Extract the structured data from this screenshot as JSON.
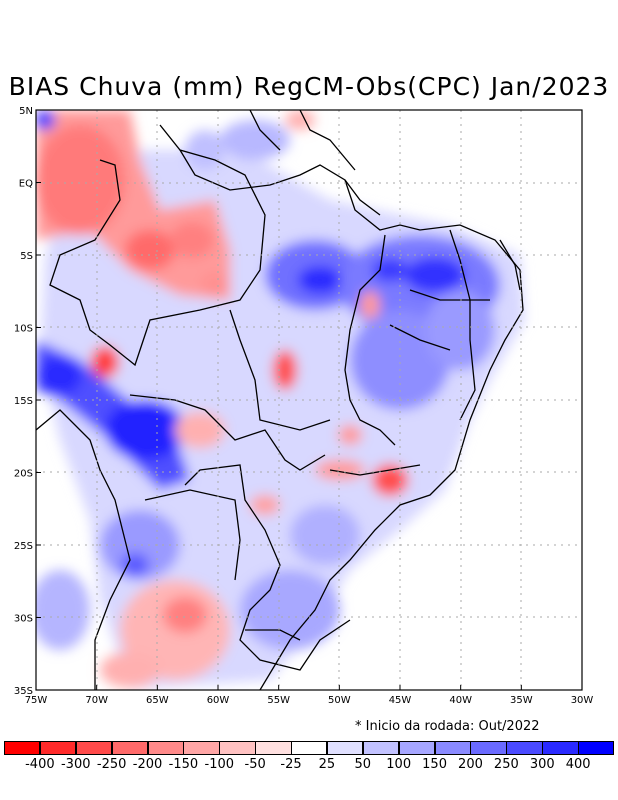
{
  "title": "BIAS Chuva (mm) RegCM-Obs(CPC) Jan/2023",
  "note": "* Inicio da rodada: Out/2022",
  "axes": {
    "lat_labels": [
      "5N",
      "EQ",
      "5S",
      "10S",
      "15S",
      "20S",
      "25S",
      "30S",
      "35S"
    ],
    "lon_labels": [
      "75W",
      "70W",
      "65W",
      "60W",
      "55W",
      "50W",
      "45W",
      "40W",
      "35W",
      "30W"
    ],
    "lon_range": [
      -75,
      -30
    ],
    "lat_range": [
      -35,
      5
    ]
  },
  "colorbar": {
    "labels": [
      "-400",
      "-300",
      "-250",
      "-200",
      "-150",
      "-100",
      "-50",
      "-25",
      "25",
      "50",
      "100",
      "150",
      "200",
      "250",
      "300",
      "400"
    ],
    "colors": [
      "#ff0000",
      "#ff2a2a",
      "#ff4a4a",
      "#ff6a6a",
      "#ff8a8a",
      "#ffa6a6",
      "#ffc2c2",
      "#ffe0e0",
      "#ffffff",
      "#e0e0ff",
      "#c2c2ff",
      "#a6a6ff",
      "#8a8aff",
      "#6a6aff",
      "#4a4aff",
      "#2a2aff",
      "#0000ff"
    ]
  },
  "anomalies": [
    {
      "lon": -68,
      "lat": 2,
      "value": -150
    },
    {
      "lon": -65,
      "lat": -4,
      "value": -200
    },
    {
      "lon": -62,
      "lat": -6,
      "value": -150
    },
    {
      "lon": -70,
      "lat": -12,
      "value": -250
    },
    {
      "lon": -55,
      "lat": -13,
      "value": -200
    },
    {
      "lon": -47,
      "lat": -18,
      "value": -100
    },
    {
      "lon": -46,
      "lat": -20.5,
      "value": -250
    },
    {
      "lon": -52,
      "lat": -7,
      "value": 300
    },
    {
      "lon": -45,
      "lat": -7,
      "value": 250
    },
    {
      "lon": -65,
      "lat": -17,
      "value": 300
    },
    {
      "lon": -72,
      "lat": -13,
      "value": 250
    },
    {
      "lon": -64,
      "lat": -28,
      "value": -150
    },
    {
      "lon": -54,
      "lat": -28,
      "value": 100
    },
    {
      "lon": -44,
      "lat": -11,
      "value": 150
    },
    {
      "lon": -39,
      "lat": -9,
      "value": 200
    }
  ]
}
